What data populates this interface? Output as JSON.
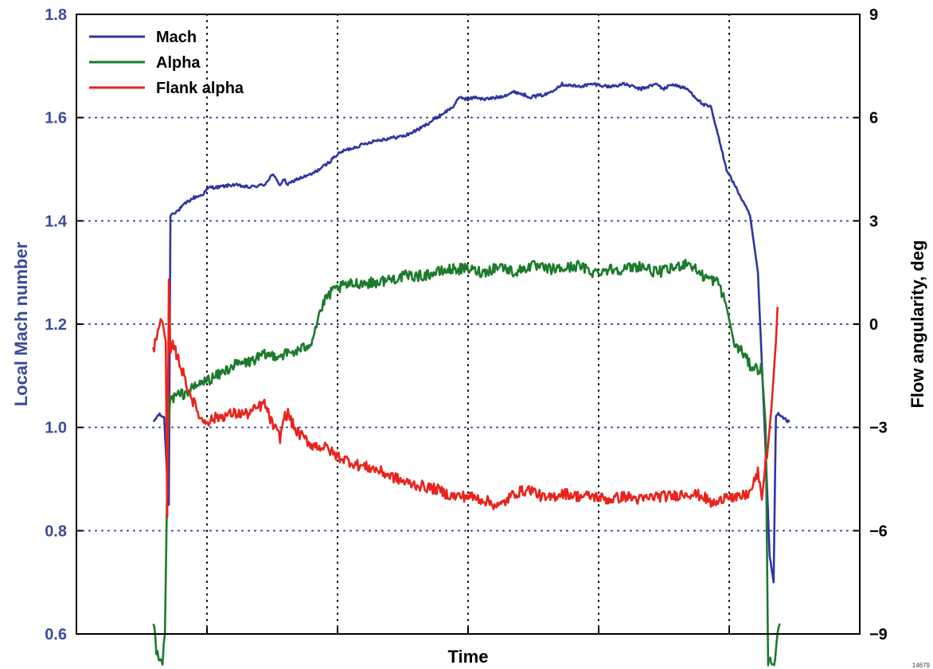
{
  "figure_id": "14679",
  "chart_data": {
    "type": "line",
    "xlabel": "Time",
    "ylabel_left": "Local Mach number",
    "ylabel_right": "Flow angularity, deg",
    "x_tick_labels_shown": false,
    "xlim": [
      0,
      100
    ],
    "ylim_left": [
      0.6,
      1.8
    ],
    "left_ticks": [
      "0.6",
      "0.8",
      "1.0",
      "1.2",
      "1.4",
      "1.6",
      "1.8"
    ],
    "ylim_right": [
      -9,
      9
    ],
    "right_ticks": [
      "−9",
      "−6",
      "−3",
      "0",
      "3",
      "6",
      "9"
    ],
    "grid": "dotted",
    "legend_position": "top-left",
    "colors": {
      "left_axis": "#3b4a9c",
      "grid": "#2b3aa8",
      "Mach": "#2e36a0",
      "Alpha": "#1c7a2c",
      "Flank alpha": "#e8231c"
    },
    "series": [
      {
        "name": "Mach",
        "axis": "left",
        "x": [
          9.8,
          10.5,
          11.2,
          11.6,
          11.8,
          12.0,
          12.3,
          13.0,
          14,
          15,
          16,
          17,
          18,
          20,
          22,
          24,
          25,
          26,
          26.5,
          27,
          28,
          30,
          32,
          33,
          34,
          35,
          36,
          38,
          40,
          42,
          44,
          46,
          48,
          49,
          50,
          51,
          52,
          54,
          56,
          58,
          60,
          62,
          64,
          66,
          68,
          70,
          72,
          74,
          75,
          76,
          77,
          78,
          79,
          80,
          81,
          82,
          83,
          84,
          85,
          86,
          87,
          88,
          88.5,
          89,
          89.3,
          89.6,
          90,
          90.5,
          91.0
        ],
        "values": [
          1.01,
          1.025,
          1.02,
          0.9,
          0.85,
          1.41,
          1.415,
          1.42,
          1.435,
          1.445,
          1.45,
          1.465,
          1.465,
          1.47,
          1.465,
          1.47,
          1.49,
          1.47,
          1.48,
          1.47,
          1.48,
          1.49,
          1.51,
          1.525,
          1.535,
          1.54,
          1.545,
          1.555,
          1.56,
          1.565,
          1.58,
          1.6,
          1.62,
          1.64,
          1.635,
          1.64,
          1.635,
          1.64,
          1.65,
          1.64,
          1.645,
          1.665,
          1.66,
          1.665,
          1.66,
          1.665,
          1.655,
          1.665,
          1.655,
          1.665,
          1.66,
          1.655,
          1.64,
          1.625,
          1.62,
          1.56,
          1.5,
          1.47,
          1.44,
          1.41,
          1.3,
          0.95,
          0.75,
          0.7,
          1.02,
          1.025,
          1.02,
          1.015,
          1.01
        ]
      },
      {
        "name": "Alpha",
        "axis": "right",
        "x": [
          9.8,
          10.2,
          10.5,
          11.0,
          11.3,
          11.7,
          12.0,
          12.5,
          14,
          16,
          18,
          20,
          22,
          24,
          26,
          28,
          29,
          30,
          31,
          32,
          33,
          34,
          36,
          38,
          40,
          42,
          44,
          46,
          48,
          50,
          52,
          54,
          56,
          58,
          60,
          62,
          64,
          66,
          68,
          70,
          72,
          74,
          76,
          78,
          80,
          82,
          83,
          84,
          85,
          86,
          87,
          87.5,
          88,
          88.3,
          89.2,
          89.5,
          89.8
        ],
        "values": [
          -8.6,
          -9.5,
          -9.8,
          -9.8,
          -9.0,
          -3.0,
          -2.2,
          -2.1,
          -2.0,
          -1.7,
          -1.5,
          -1.2,
          -1.1,
          -0.9,
          -0.9,
          -0.8,
          -0.7,
          -0.5,
          0.3,
          0.8,
          1.0,
          1.1,
          1.2,
          1.2,
          1.3,
          1.4,
          1.4,
          1.5,
          1.6,
          1.6,
          1.5,
          1.7,
          1.5,
          1.7,
          1.6,
          1.6,
          1.7,
          1.5,
          1.6,
          1.6,
          1.7,
          1.5,
          1.6,
          1.8,
          1.4,
          1.2,
          0.5,
          -0.6,
          -0.8,
          -1.2,
          -1.3,
          -1.3,
          -3.0,
          -9.8,
          -9.8,
          -9.0,
          -8.7
        ]
      },
      {
        "name": "Flank alpha",
        "axis": "right",
        "x": [
          9.8,
          10.5,
          11.0,
          11.4,
          11.6,
          11.8,
          12.0,
          12.3,
          13,
          14,
          15,
          16,
          17,
          18,
          20,
          22,
          24,
          25,
          26,
          26.5,
          27,
          28,
          30,
          32,
          33,
          34,
          36,
          38,
          40,
          42,
          44,
          46,
          48,
          50,
          52,
          54,
          56,
          58,
          60,
          62,
          64,
          66,
          68,
          70,
          72,
          74,
          76,
          78,
          80,
          81,
          82,
          83,
          84,
          85,
          86,
          87,
          87.5,
          88,
          88.3,
          88.7,
          89.0,
          89.3,
          89.5
        ],
        "values": [
          -0.8,
          0.0,
          0.0,
          -0.5,
          -5.6,
          1.3,
          -1.0,
          -0.6,
          -1.0,
          -1.7,
          -2.3,
          -2.8,
          -2.8,
          -2.7,
          -2.6,
          -2.6,
          -2.3,
          -2.9,
          -3.3,
          -2.7,
          -2.6,
          -3.1,
          -3.5,
          -3.6,
          -3.8,
          -3.9,
          -4.1,
          -4.2,
          -4.4,
          -4.6,
          -4.7,
          -4.8,
          -5.0,
          -5.0,
          -5.1,
          -5.3,
          -4.9,
          -4.8,
          -5.1,
          -4.9,
          -5.0,
          -5.0,
          -5.1,
          -5.0,
          -5.1,
          -5.0,
          -5.0,
          -4.9,
          -5.0,
          -5.2,
          -5.2,
          -4.9,
          -5.1,
          -5.0,
          -4.9,
          -4.3,
          -5.1,
          -4.0,
          -3.5,
          -2.5,
          -1.5,
          -0.5,
          0.5
        ]
      }
    ]
  }
}
